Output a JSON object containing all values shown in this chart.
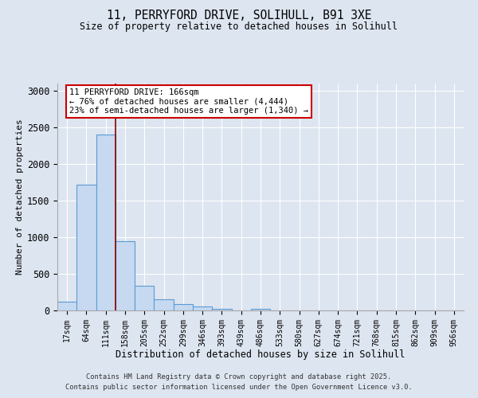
{
  "title_line1": "11, PERRYFORD DRIVE, SOLIHULL, B91 3XE",
  "title_line2": "Size of property relative to detached houses in Solihull",
  "xlabel": "Distribution of detached houses by size in Solihull",
  "ylabel": "Number of detached properties",
  "bin_labels": [
    "17sqm",
    "64sqm",
    "111sqm",
    "158sqm",
    "205sqm",
    "252sqm",
    "299sqm",
    "346sqm",
    "393sqm",
    "439sqm",
    "486sqm",
    "533sqm",
    "580sqm",
    "627sqm",
    "674sqm",
    "721sqm",
    "768sqm",
    "815sqm",
    "862sqm",
    "909sqm",
    "956sqm"
  ],
  "bin_values": [
    120,
    1720,
    2400,
    950,
    340,
    155,
    90,
    55,
    25,
    5,
    17,
    5,
    0,
    0,
    0,
    0,
    0,
    0,
    0,
    0,
    0
  ],
  "bar_color": "#c6d9f0",
  "bar_edge_color": "#5b9bd5",
  "ylim": [
    0,
    3100
  ],
  "yticks": [
    0,
    500,
    1000,
    1500,
    2000,
    2500,
    3000
  ],
  "property_line_x": 2.5,
  "property_line_color": "#8b0000",
  "annotation_text": "11 PERRYFORD DRIVE: 166sqm\n← 76% of detached houses are smaller (4,444)\n23% of semi-detached houses are larger (1,340) →",
  "annotation_box_color": "#cc0000",
  "footer_line1": "Contains HM Land Registry data © Crown copyright and database right 2025.",
  "footer_line2": "Contains public sector information licensed under the Open Government Licence v3.0.",
  "background_color": "#dde5f0",
  "plot_bg_color": "#dde5f0"
}
